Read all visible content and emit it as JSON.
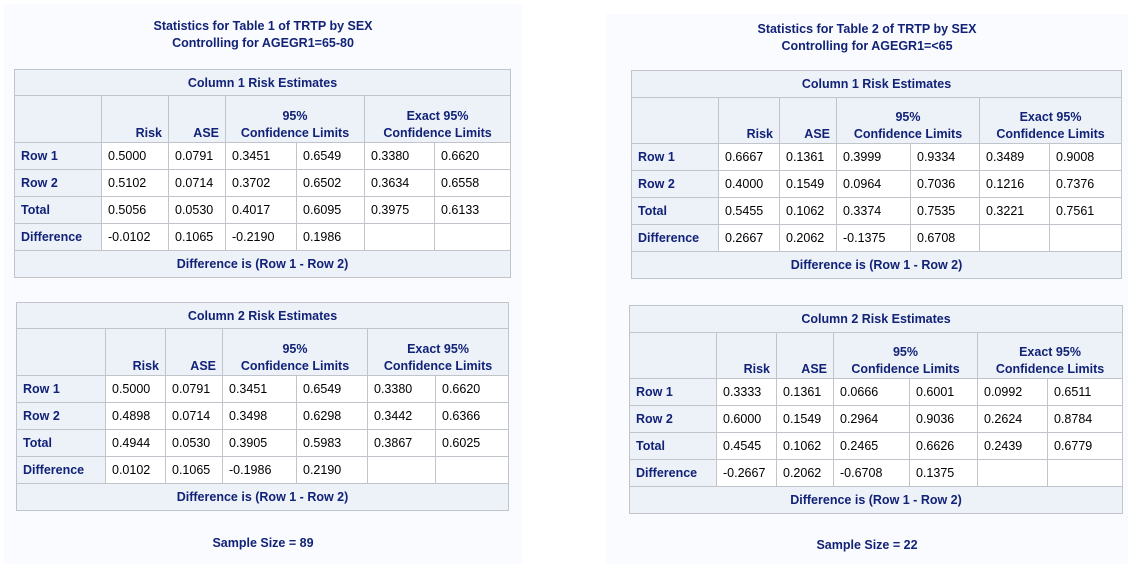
{
  "panels": [
    {
      "title_line1": "Statistics for Table 1 of TRTP by SEX",
      "title_line2": "Controlling for AGEGR1=65-80",
      "sample_size": "Sample Size = 89",
      "tables": [
        {
          "caption": "Column 1 Risk Estimates",
          "rows": [
            {
              "label": "Row 1",
              "risk": "0.5000",
              "ase": "0.0791",
              "cl_lo": "0.3451",
              "cl_hi": "0.6549",
              "ex_lo": "0.3380",
              "ex_hi": "0.6620"
            },
            {
              "label": "Row 2",
              "risk": "0.5102",
              "ase": "0.0714",
              "cl_lo": "0.3702",
              "cl_hi": "0.6502",
              "ex_lo": "0.3634",
              "ex_hi": "0.6558"
            },
            {
              "label": "Total",
              "risk": "0.5056",
              "ase": "0.0530",
              "cl_lo": "0.4017",
              "cl_hi": "0.6095",
              "ex_lo": "0.3975",
              "ex_hi": "0.6133"
            },
            {
              "label": "Difference",
              "risk": "-0.0102",
              "ase": "0.1065",
              "cl_lo": "-0.2190",
              "cl_hi": "0.1986",
              "ex_lo": "",
              "ex_hi": ""
            }
          ],
          "footer": "Difference is (Row 1 - Row 2)"
        },
        {
          "caption": "Column 2 Risk Estimates",
          "rows": [
            {
              "label": "Row 1",
              "risk": "0.5000",
              "ase": "0.0791",
              "cl_lo": "0.3451",
              "cl_hi": "0.6549",
              "ex_lo": "0.3380",
              "ex_hi": "0.6620"
            },
            {
              "label": "Row 2",
              "risk": "0.4898",
              "ase": "0.0714",
              "cl_lo": "0.3498",
              "cl_hi": "0.6298",
              "ex_lo": "0.3442",
              "ex_hi": "0.6366"
            },
            {
              "label": "Total",
              "risk": "0.4944",
              "ase": "0.0530",
              "cl_lo": "0.3905",
              "cl_hi": "0.5983",
              "ex_lo": "0.3867",
              "ex_hi": "0.6025"
            },
            {
              "label": "Difference",
              "risk": "0.0102",
              "ase": "0.1065",
              "cl_lo": "-0.1986",
              "cl_hi": "0.2190",
              "ex_lo": "",
              "ex_hi": ""
            }
          ],
          "footer": "Difference is (Row 1 - Row 2)"
        }
      ]
    },
    {
      "title_line1": "Statistics for Table 2 of TRTP by SEX",
      "title_line2": "Controlling for AGEGR1=<65",
      "sample_size": "Sample Size = 22",
      "tables": [
        {
          "caption": "Column 1 Risk Estimates",
          "rows": [
            {
              "label": "Row 1",
              "risk": "0.6667",
              "ase": "0.1361",
              "cl_lo": "0.3999",
              "cl_hi": "0.9334",
              "ex_lo": "0.3489",
              "ex_hi": "0.9008"
            },
            {
              "label": "Row 2",
              "risk": "0.4000",
              "ase": "0.1549",
              "cl_lo": "0.0964",
              "cl_hi": "0.7036",
              "ex_lo": "0.1216",
              "ex_hi": "0.7376"
            },
            {
              "label": "Total",
              "risk": "0.5455",
              "ase": "0.1062",
              "cl_lo": "0.3374",
              "cl_hi": "0.7535",
              "ex_lo": "0.3221",
              "ex_hi": "0.7561"
            },
            {
              "label": "Difference",
              "risk": "0.2667",
              "ase": "0.2062",
              "cl_lo": "-0.1375",
              "cl_hi": "0.6708",
              "ex_lo": "",
              "ex_hi": ""
            }
          ],
          "footer": "Difference is (Row 1 - Row 2)"
        },
        {
          "caption": "Column 2 Risk Estimates",
          "rows": [
            {
              "label": "Row 1",
              "risk": "0.3333",
              "ase": "0.1361",
              "cl_lo": "0.0666",
              "cl_hi": "0.6001",
              "ex_lo": "0.0992",
              "ex_hi": "0.6511"
            },
            {
              "label": "Row 2",
              "risk": "0.6000",
              "ase": "0.1549",
              "cl_lo": "0.2964",
              "cl_hi": "0.9036",
              "ex_lo": "0.2624",
              "ex_hi": "0.8784"
            },
            {
              "label": "Total",
              "risk": "0.4545",
              "ase": "0.1062",
              "cl_lo": "0.2465",
              "cl_hi": "0.6626",
              "ex_lo": "0.2439",
              "ex_hi": "0.6779"
            },
            {
              "label": "Difference",
              "risk": "-0.2667",
              "ase": "0.2062",
              "cl_lo": "-0.6708",
              "cl_hi": "0.1375",
              "ex_lo": "",
              "ex_hi": ""
            }
          ],
          "footer": "Difference is (Row 1 - Row 2)"
        }
      ]
    }
  ],
  "headers": {
    "risk": "Risk",
    "ase": "ASE",
    "cl_line1": "95%",
    "cl_line2": "Confidence Limits",
    "ex_line1": "Exact 95%",
    "ex_line2": "Confidence Limits"
  }
}
